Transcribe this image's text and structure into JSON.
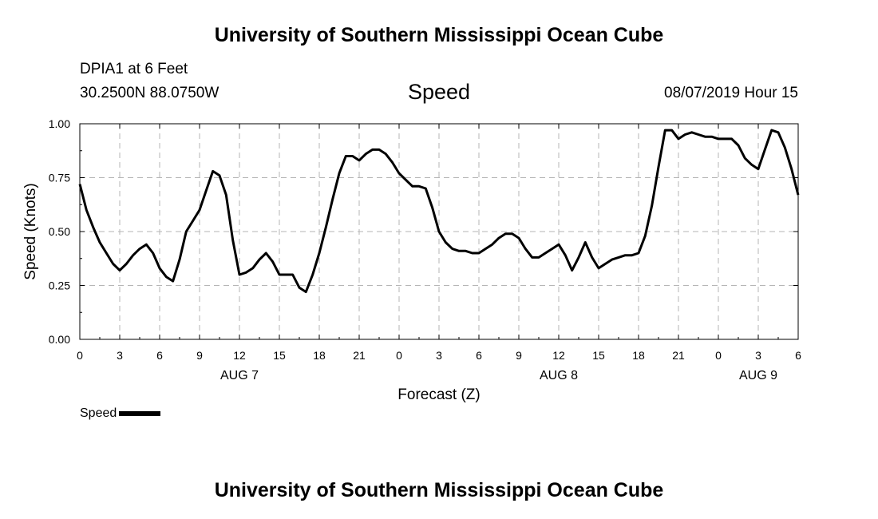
{
  "header": {
    "org_title": "University of Southern Mississippi Ocean Cube",
    "station": "DPIA1 at 6 Feet",
    "coordinates": "30.2500N 88.0750W",
    "variable_title": "Speed",
    "timestamp": "08/07/2019 Hour 15"
  },
  "footer": {
    "org_title": "University of Southern Mississippi Ocean Cube"
  },
  "legend": {
    "label": "Speed"
  },
  "chart_data": {
    "type": "line",
    "title": "Speed",
    "xlabel": "Forecast (Z)",
    "ylabel": "Speed (Knots)",
    "xlim": [
      0,
      54
    ],
    "ylim": [
      0,
      1
    ],
    "grid": true,
    "legend_position": "bottom-left",
    "x_ticks": [
      {
        "x": 0,
        "label": "0"
      },
      {
        "x": 3,
        "label": "3"
      },
      {
        "x": 6,
        "label": "6"
      },
      {
        "x": 9,
        "label": "9"
      },
      {
        "x": 12,
        "label": "12"
      },
      {
        "x": 15,
        "label": "15"
      },
      {
        "x": 18,
        "label": "18"
      },
      {
        "x": 21,
        "label": "21"
      },
      {
        "x": 24,
        "label": "0"
      },
      {
        "x": 27,
        "label": "3"
      },
      {
        "x": 30,
        "label": "6"
      },
      {
        "x": 33,
        "label": "9"
      },
      {
        "x": 36,
        "label": "12"
      },
      {
        "x": 39,
        "label": "15"
      },
      {
        "x": 42,
        "label": "18"
      },
      {
        "x": 45,
        "label": "21"
      },
      {
        "x": 48,
        "label": "0"
      },
      {
        "x": 51,
        "label": "3"
      },
      {
        "x": 54,
        "label": "6"
      }
    ],
    "day_labels": [
      {
        "x": 12,
        "label": "AUG 7"
      },
      {
        "x": 36,
        "label": "AUG 8"
      },
      {
        "x": 51,
        "label": "AUG 9"
      }
    ],
    "y_ticks": [
      {
        "y": 0,
        "label": "0.00"
      },
      {
        "y": 0.25,
        "label": "0.25"
      },
      {
        "y": 0.5,
        "label": "0.50"
      },
      {
        "y": 0.75,
        "label": "0.75"
      },
      {
        "y": 1,
        "label": "1.00"
      }
    ],
    "series": [
      {
        "name": "Speed",
        "color": "#000000",
        "x": [
          0,
          0.5,
          1,
          1.5,
          2,
          2.5,
          3,
          3.5,
          4,
          4.5,
          5,
          5.5,
          6,
          6.5,
          7,
          7.5,
          8,
          8.5,
          9,
          9.5,
          10,
          10.5,
          11,
          11.5,
          12,
          12.5,
          13,
          13.5,
          14,
          14.5,
          15,
          15.5,
          16,
          16.5,
          17,
          17.5,
          18,
          18.5,
          19,
          19.5,
          20,
          20.5,
          21,
          21.5,
          22,
          22.5,
          23,
          23.5,
          24,
          24.5,
          25,
          25.5,
          26,
          26.5,
          27,
          27.5,
          28,
          28.5,
          29,
          29.5,
          30,
          30.5,
          31,
          31.5,
          32,
          32.5,
          33,
          33.5,
          34,
          34.5,
          35,
          35.5,
          36,
          36.5,
          37,
          37.5,
          38,
          38.5,
          39,
          39.5,
          40,
          40.5,
          41,
          41.5,
          42,
          42.5,
          43,
          43.5,
          44,
          44.5,
          45,
          45.5,
          46,
          46.5,
          47,
          47.5,
          48,
          48.5,
          49,
          49.5,
          50,
          50.5,
          51,
          51.5,
          52,
          52.5,
          53,
          53.5,
          54
        ],
        "values": [
          0.72,
          0.6,
          0.52,
          0.45,
          0.4,
          0.35,
          0.32,
          0.35,
          0.39,
          0.42,
          0.44,
          0.4,
          0.33,
          0.29,
          0.27,
          0.37,
          0.5,
          0.55,
          0.6,
          0.69,
          0.78,
          0.76,
          0.67,
          0.46,
          0.3,
          0.31,
          0.33,
          0.37,
          0.4,
          0.36,
          0.3,
          0.3,
          0.3,
          0.24,
          0.22,
          0.3,
          0.4,
          0.52,
          0.65,
          0.77,
          0.85,
          0.85,
          0.83,
          0.86,
          0.88,
          0.88,
          0.86,
          0.82,
          0.77,
          0.74,
          0.71,
          0.71,
          0.7,
          0.61,
          0.5,
          0.45,
          0.42,
          0.41,
          0.41,
          0.4,
          0.4,
          0.42,
          0.44,
          0.47,
          0.49,
          0.49,
          0.47,
          0.42,
          0.38,
          0.38,
          0.4,
          0.42,
          0.44,
          0.39,
          0.32,
          0.38,
          0.45,
          0.38,
          0.33,
          0.35,
          0.37,
          0.38,
          0.39,
          0.39,
          0.4,
          0.48,
          0.62,
          0.8,
          0.97,
          0.97,
          0.93,
          0.95,
          0.96,
          0.95,
          0.94,
          0.94,
          0.93,
          0.93,
          0.93,
          0.9,
          0.84,
          0.81,
          0.79,
          0.88,
          0.97,
          0.96,
          0.89,
          0.79,
          0.67
        ]
      }
    ]
  }
}
